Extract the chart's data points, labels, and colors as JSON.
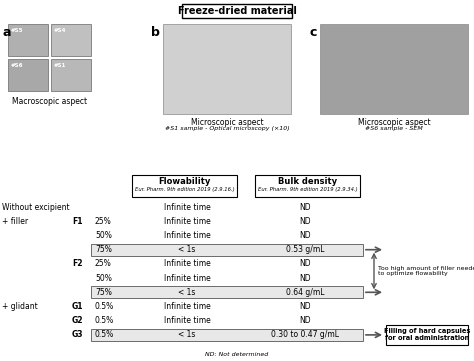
{
  "title": "Freeze-dried material",
  "bg_color": "#ffffff",
  "panel_a_label": "a",
  "panel_b_label": "b",
  "panel_c_label": "c",
  "panel_a_caption": "Macroscopic aspect",
  "panel_b_caption": "Microscopic aspect",
  "panel_b_subcaption": "#S1 sample - Optical microscopy (×10)",
  "panel_c_caption": "Microscopic aspect",
  "panel_c_subcaption": "#S6 sample - SEM",
  "flowability_header": "Flowability",
  "flowability_subheader": "Eur. Pharm. 9th edition 2019 (2.9.16.)",
  "bulk_density_header": "Bulk density",
  "bulk_density_subheader": "Eur. Pharm. 9th edition 2019 (2.9.34.)",
  "rows": [
    {
      "label1": "Without excipient",
      "label2": "",
      "label3": "",
      "flowability": "Infinite time",
      "bulk_density": "ND",
      "highlight": false,
      "arrow": false
    },
    {
      "label1": "+ filler",
      "label2": "F1",
      "label3": "25%",
      "flowability": "Infinite time",
      "bulk_density": "ND",
      "highlight": false,
      "arrow": false
    },
    {
      "label1": "",
      "label2": "",
      "label3": "50%",
      "flowability": "Infinite time",
      "bulk_density": "ND",
      "highlight": false,
      "arrow": false
    },
    {
      "label1": "",
      "label2": "",
      "label3": "75%",
      "flowability": "< 1s",
      "bulk_density": "0.53 g/mL",
      "highlight": true,
      "arrow": true
    },
    {
      "label1": "",
      "label2": "F2",
      "label3": "25%",
      "flowability": "Infinite time",
      "bulk_density": "ND",
      "highlight": false,
      "arrow": false
    },
    {
      "label1": "",
      "label2": "",
      "label3": "50%",
      "flowability": "Infinite time",
      "bulk_density": "ND",
      "highlight": false,
      "arrow": false
    },
    {
      "label1": "",
      "label2": "",
      "label3": "75%",
      "flowability": "< 1s",
      "bulk_density": "0.64 g/mL",
      "highlight": true,
      "arrow": true
    },
    {
      "label1": "+ glidant",
      "label2": "G1",
      "label3": "0.5%",
      "flowability": "Infinite time",
      "bulk_density": "ND",
      "highlight": false,
      "arrow": false
    },
    {
      "label1": "",
      "label2": "G2",
      "label3": "0.5%",
      "flowability": "Infinite time",
      "bulk_density": "ND",
      "highlight": false,
      "arrow": false
    },
    {
      "label1": "",
      "label2": "G3",
      "label3": "0.5%",
      "flowability": "< 1s",
      "bulk_density": "0.30 to 0.47 g/mL",
      "highlight": true,
      "arrow": true
    }
  ],
  "footnote": "ND: Not determined",
  "filler_annotation": "Too high amount of filler needed\nto optimize flowability",
  "glidant_annotation": "Filling of hard capsules\nfor oral administration",
  "img_a_labels": [
    "#S5",
    "#S4",
    "#S6",
    "#S1"
  ],
  "img_a_colors": [
    "#b0b0b0",
    "#c0c0c0",
    "#a8a8a8",
    "#b8b8b8"
  ],
  "img_b_color": "#d0d0d0",
  "img_c_color": "#a0a0a0"
}
